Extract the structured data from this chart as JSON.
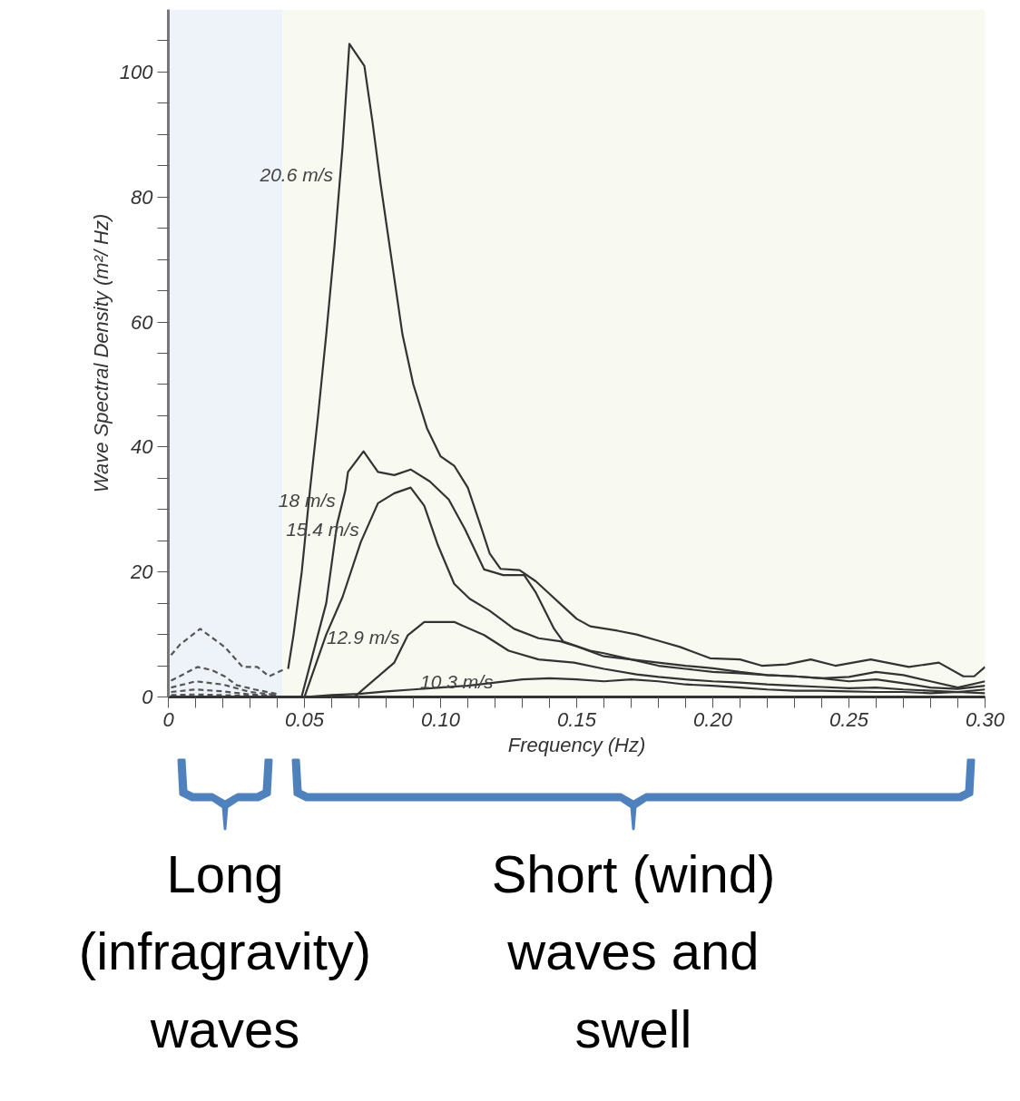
{
  "chart_data": {
    "type": "line",
    "xlabel": "Frequency (Hz)",
    "ylabel": "Wave Spectral Density (m²/ Hz)",
    "xlim": [
      0,
      0.3
    ],
    "ylim": [
      0,
      110
    ],
    "xticks": [
      0,
      {
        "value": 0.01,
        "label": null
      },
      {
        "value": 0.02,
        "label": null
      },
      {
        "value": 0.03,
        "label": null
      },
      {
        "value": 0.04,
        "label": null
      },
      {
        "value": 0.05,
        "label": "0.05"
      },
      {
        "value": 0.06,
        "label": null
      },
      {
        "value": 0.07,
        "label": null
      },
      {
        "value": 0.08,
        "label": null
      },
      {
        "value": 0.09,
        "label": null
      },
      {
        "value": 0.1,
        "label": "0.10"
      },
      {
        "value": 0.11,
        "label": null
      },
      {
        "value": 0.12,
        "label": null
      },
      {
        "value": 0.13,
        "label": null
      },
      {
        "value": 0.14,
        "label": null
      },
      {
        "value": 0.15,
        "label": "0.15"
      },
      {
        "value": 0.16,
        "label": null
      },
      {
        "value": 0.17,
        "label": null
      },
      {
        "value": 0.18,
        "label": null
      },
      {
        "value": 0.19,
        "label": null
      },
      {
        "value": 0.2,
        "label": "0.20"
      },
      {
        "value": 0.21,
        "label": null
      },
      {
        "value": 0.22,
        "label": null
      },
      {
        "value": 0.23,
        "label": null
      },
      {
        "value": 0.24,
        "label": null
      },
      {
        "value": 0.25,
        "label": "0.25"
      },
      {
        "value": 0.26,
        "label": null
      },
      {
        "value": 0.27,
        "label": null
      },
      {
        "value": 0.28,
        "label": null
      },
      {
        "value": 0.29,
        "label": null
      },
      {
        "value": 0.3,
        "label": "0.30"
      }
    ],
    "yticks": [
      0,
      {
        "value": 5,
        "label": null
      },
      {
        "value": 10,
        "label": null
      },
      {
        "value": 15,
        "label": null
      },
      20,
      {
        "value": 25,
        "label": null
      },
      {
        "value": 30,
        "label": null
      },
      {
        "value": 35,
        "label": null
      },
      40,
      {
        "value": 45,
        "label": null
      },
      {
        "value": 50,
        "label": null
      },
      {
        "value": 55,
        "label": null
      },
      60,
      {
        "value": 65,
        "label": null
      },
      {
        "value": 70,
        "label": null
      },
      {
        "value": 75,
        "label": null
      },
      80,
      {
        "value": 85,
        "label": null
      },
      {
        "value": 90,
        "label": null
      },
      {
        "value": 95,
        "label": null
      },
      100,
      {
        "value": 105,
        "label": null
      }
    ],
    "grid": false,
    "legend": false,
    "marker": "none",
    "bands": [
      {
        "axis": "x",
        "from": 0,
        "to": 0.042,
        "color": "#eef3fa"
      },
      {
        "axis": "x",
        "from": 0.042,
        "to": 0.3,
        "color": "#f8f9f1"
      }
    ],
    "annotations": [
      "Long (infragravity) waves",
      "Short (wind) waves and swell"
    ],
    "series": [
      {
        "name": "20.6 m/s",
        "color": "#333333",
        "line_style": "solid",
        "x": [
          0.044,
          0.046,
          0.049,
          0.052,
          0.055,
          0.058,
          0.061,
          0.064,
          0.0665,
          0.072,
          0.075,
          0.078,
          0.082,
          0.086,
          0.09,
          0.095,
          0.1,
          0.105,
          0.11,
          0.115,
          0.118,
          0.122,
          0.129,
          0.135,
          0.14,
          0.145,
          0.15,
          0.155,
          0.165,
          0.172,
          0.18,
          0.188,
          0.199,
          0.21,
          0.218,
          0.227,
          0.236,
          0.245,
          0.258,
          0.272,
          0.283,
          0.292,
          0.296,
          0.3
        ],
        "values": [
          4.5,
          10,
          20,
          33,
          45,
          58,
          72,
          88,
          104.5,
          101,
          92,
          82,
          70,
          58,
          50,
          43,
          38.5,
          37,
          33.5,
          27,
          23,
          20.5,
          20.3,
          18.5,
          16.5,
          14.5,
          12.5,
          11.3,
          10.6,
          10,
          9,
          8,
          6.2,
          6,
          5,
          5.2,
          6,
          5,
          6,
          4.8,
          5.5,
          3.3,
          3.3,
          4.8
        ]
      },
      {
        "name": "18 m/s",
        "color": "#333333",
        "line_style": "solid",
        "x": [
          0.049,
          0.058,
          0.062,
          0.065,
          0.066,
          0.0717,
          0.077,
          0.083,
          0.089,
          0.096,
          0.103,
          0.109,
          0.116,
          0.123,
          0.1307,
          0.135,
          0.1417,
          0.145,
          0.155,
          0.16,
          0.17,
          0.18,
          0.19,
          0.2,
          0.21,
          0.22,
          0.23,
          0.24,
          0.25,
          0.26,
          0.27,
          0.28,
          0.29,
          0.3
        ],
        "values": [
          0.1,
          15,
          27.7,
          33,
          36,
          39.3,
          36,
          35.5,
          36.4,
          34.5,
          31.6,
          26.8,
          20.4,
          19.5,
          19.5,
          16.7,
          10.9,
          8.9,
          7.4,
          7,
          6,
          5.5,
          5,
          4.6,
          4,
          3.5,
          3.3,
          3,
          3.2,
          4,
          3.5,
          2.5,
          1.5,
          2.5
        ]
      },
      {
        "name": "15.4 m/s",
        "color": "#333333",
        "line_style": "solid",
        "x": [
          0.05,
          0.058,
          0.064,
          0.0707,
          0.077,
          0.083,
          0.089,
          0.094,
          0.099,
          0.105,
          0.1107,
          0.118,
          0.127,
          0.136,
          0.144,
          0.15,
          0.16,
          0.17,
          0.18,
          0.19,
          0.2,
          0.21,
          0.22,
          0.23,
          0.24,
          0.25,
          0.26,
          0.27,
          0.28,
          0.29,
          0.3
        ],
        "values": [
          0,
          10,
          16,
          24.8,
          31,
          32.6,
          33.5,
          30.6,
          24.3,
          18.1,
          15.7,
          13.8,
          10.9,
          9.4,
          8.9,
          8.1,
          6.5,
          6,
          5,
          4.5,
          4,
          3.8,
          3.5,
          3.3,
          3,
          2.5,
          2.8,
          2.2,
          1.5,
          1.3,
          1.8
        ]
      },
      {
        "name": "12.9 m/s",
        "color": "#333333",
        "line_style": "solid",
        "x": [
          0.0683,
          0.083,
          0.088,
          0.094,
          0.105,
          0.116,
          0.125,
          0.136,
          0.149,
          0.16,
          0.172,
          0.18,
          0.19,
          0.2,
          0.21,
          0.22,
          0.23,
          0.24,
          0.25,
          0.26,
          0.27,
          0.28,
          0.29,
          0.3
        ],
        "values": [
          0,
          5.5,
          9.9,
          12,
          12,
          9.9,
          7.4,
          6,
          5.5,
          4.5,
          3.6,
          3.2,
          2.8,
          2.5,
          2.3,
          2,
          1.8,
          1.6,
          1.4,
          1.5,
          1.2,
          1,
          0.8,
          1.2
        ]
      },
      {
        "name": "10.3 m/s",
        "color": "#333333",
        "line_style": "solid",
        "x": [
          0.05,
          0.06,
          0.07,
          0.08,
          0.09,
          0.1,
          0.11,
          0.12,
          0.13,
          0.14,
          0.15,
          0.16,
          0.17,
          0.18,
          0.19,
          0.2,
          0.21,
          0.22,
          0.23,
          0.24,
          0.25,
          0.26,
          0.27,
          0.28,
          0.29,
          0.3
        ],
        "values": [
          0,
          0.3,
          0.5,
          0.9,
          1.2,
          1.5,
          1.8,
          2.3,
          2.8,
          3,
          2.8,
          2.5,
          2.8,
          2.5,
          2,
          1.8,
          1.5,
          1.2,
          1,
          1,
          0.9,
          0.8,
          0.8,
          0.6,
          0.8,
          0.6
        ]
      },
      {
        "color": "#555555",
        "line_style": "dashed",
        "x": [
          0.001,
          0.0043,
          0.0117,
          0.0207,
          0.0273,
          0.0327,
          0.037,
          0.042
        ],
        "values": [
          6.7,
          8.4,
          10.9,
          8,
          4.8,
          4.8,
          3.3,
          4.3
        ]
      },
      {
        "color": "#555555",
        "line_style": "dashed",
        "x": [
          0.001,
          0.0107,
          0.016,
          0.0207,
          0.025,
          0.0317,
          0.0407
        ],
        "values": [
          2.6,
          4.8,
          4.3,
          3.3,
          1.9,
          1.2,
          0.4
        ]
      },
      {
        "color": "#555555",
        "line_style": "dashed",
        "x": [
          0.001,
          0.01,
          0.02,
          0.03,
          0.04
        ],
        "values": [
          1.5,
          2.5,
          2,
          0.8,
          0.3
        ]
      },
      {
        "color": "#555555",
        "line_style": "dashed",
        "x": [
          0.001,
          0.01,
          0.02,
          0.03,
          0.04
        ],
        "values": [
          0.8,
          1.2,
          0.9,
          0.4,
          0.2
        ]
      },
      {
        "color": "#555555",
        "line_style": "dashed",
        "x": [
          0.001,
          0.01,
          0.02,
          0.03,
          0.04
        ],
        "values": [
          0.3,
          0.4,
          0.3,
          0.2,
          0.1
        ]
      }
    ]
  }
}
